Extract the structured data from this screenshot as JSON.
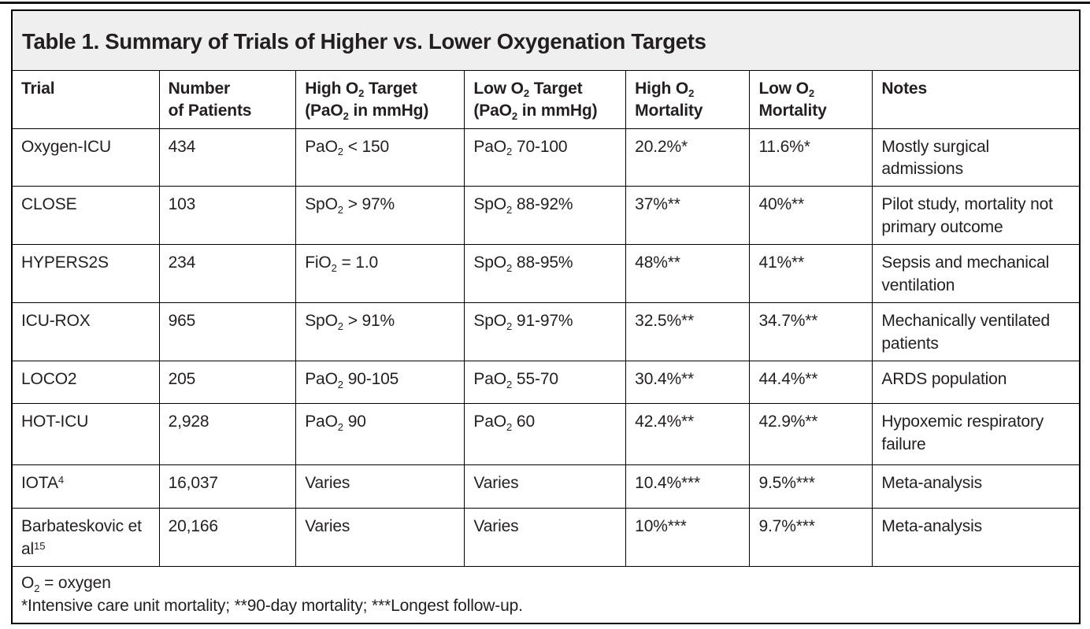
{
  "title": "Table 1. Summary of Trials of Higher vs. Lower Oxygenation Targets",
  "table": {
    "columns": [
      "Trial",
      "Number\nof Patients",
      "High O₂ Target\n(PaO₂ in mmHg)",
      "Low O₂ Target\n(PaO₂ in mmHg)",
      "High O₂\nMortality",
      "Low O₂\nMortality",
      "Notes"
    ],
    "rows": [
      [
        "Oxygen-ICU",
        "434",
        "PaO₂ < 150",
        "PaO₂ 70-100",
        "20.2%*",
        "11.6%*",
        "Mostly surgical admissions"
      ],
      [
        "CLOSE",
        "103",
        "SpO₂ > 97%",
        "SpO₂ 88-92%",
        "37%**",
        "40%**",
        "Pilot study, mortality not primary outcome"
      ],
      [
        "HYPERS2S",
        "234",
        "FiO₂ = 1.0",
        "SpO₂ 88-95%",
        "48%**",
        "41%**",
        "Sepsis and mechanical ventilation"
      ],
      [
        "ICU-ROX",
        "965",
        "SpO₂ > 91%",
        "SpO₂ 91-97%",
        "32.5%**",
        "34.7%**",
        "Mechanically ventilated patients"
      ],
      [
        "LOCO2",
        "205",
        "PaO₂ 90-105",
        "PaO₂ 55-70",
        "30.4%**",
        "44.4%**",
        "ARDS population"
      ],
      [
        "HOT-ICU",
        "2,928",
        "PaO₂ 90",
        "PaO₂ 60",
        "42.4%**",
        "42.9%**",
        "Hypoxemic respiratory failure"
      ],
      [
        "IOTA⁴",
        "16,037",
        "Varies",
        "Varies",
        "10.4%***",
        "9.5%***",
        "Meta-analysis"
      ],
      [
        "Barbateskovic et al¹⁵",
        "20,166",
        "Varies",
        "Varies",
        "10%***",
        "9.7%***",
        "Meta-analysis"
      ]
    ],
    "footnotes": [
      "O₂ = oxygen",
      "*Intensive care unit mortality; **90-day mortality; ***Longest follow-up."
    ]
  },
  "colors": {
    "title_bg": "#efeff0",
    "text": "#231f20",
    "border": "#000000"
  }
}
